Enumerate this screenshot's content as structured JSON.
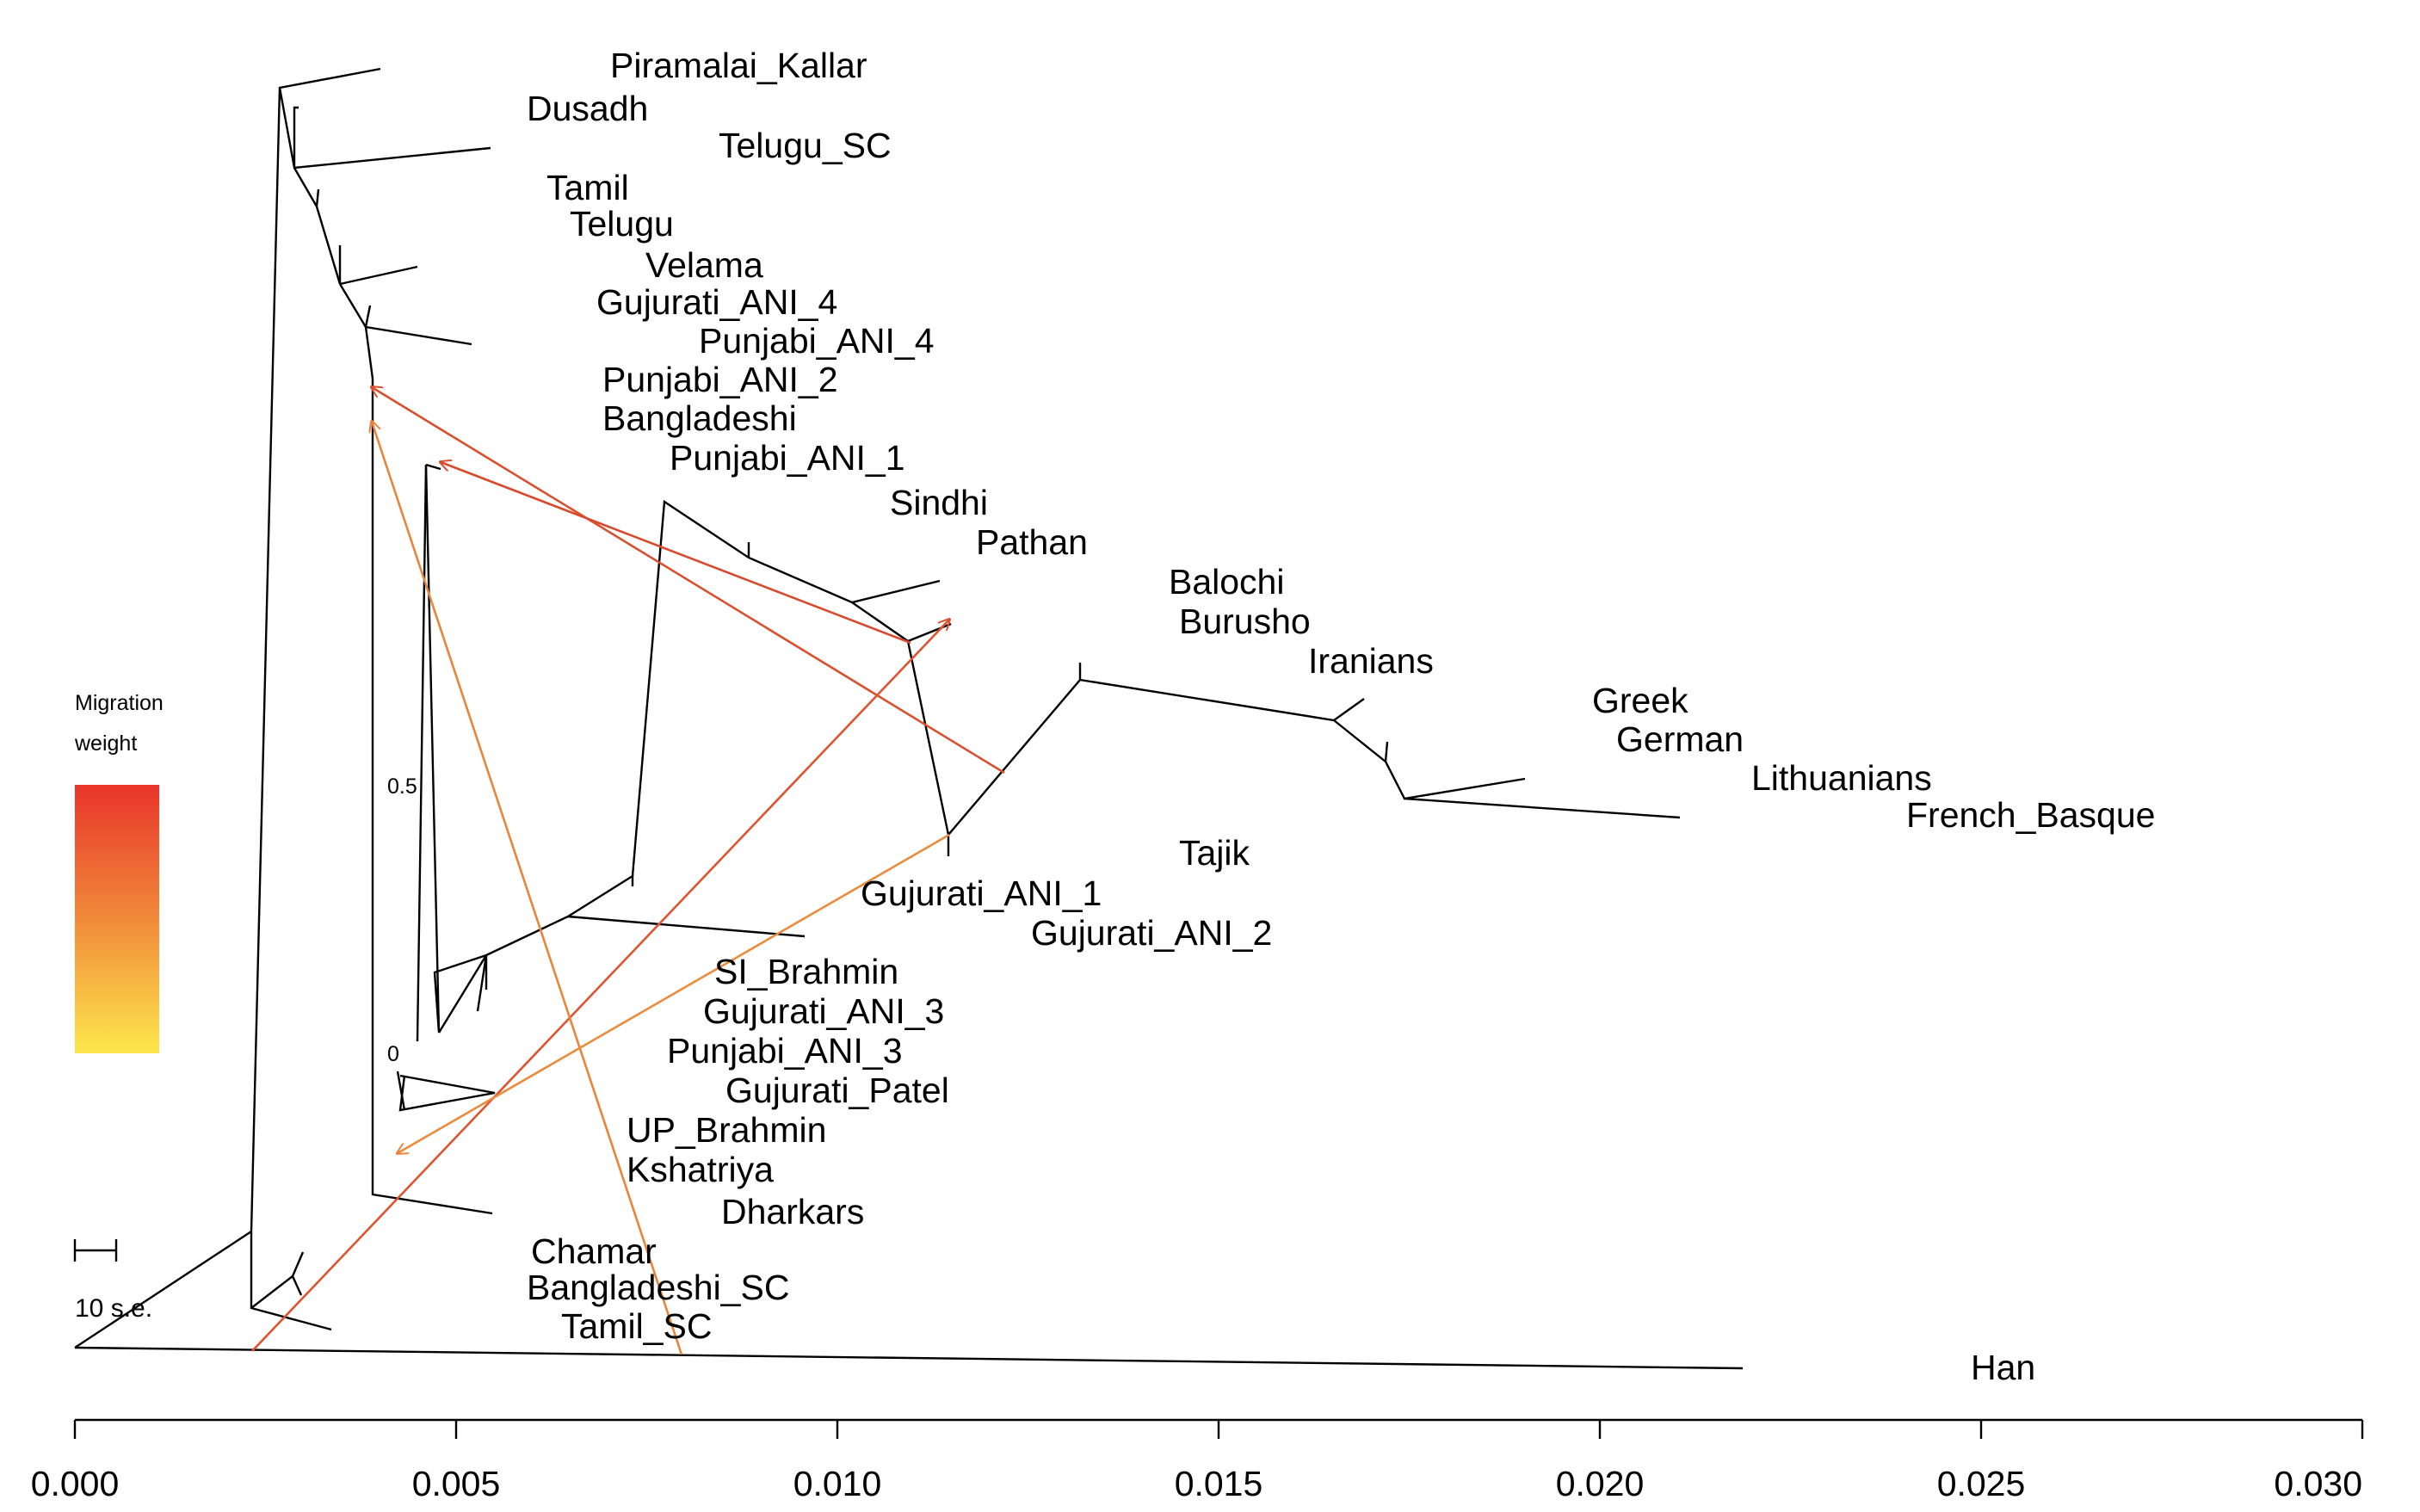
{
  "populations": [
    "Piramalai_Kallar",
    "Dusadh",
    "Telugu_SC",
    "Tamil",
    "Telugu",
    "Velama",
    "Gujurati_ANI_4",
    "Punjabi_ANI_4",
    "Punjabi_ANI_2",
    "Bangladeshi",
    "Punjabi_ANI_1",
    "Sindhi",
    "Pathan",
    "Balochi",
    "Burusho",
    "Iranians",
    "Greek",
    "German",
    "Lithuanians",
    "French_Basque",
    "Tajik",
    "Gujurati_ANI_1",
    "Gujurati_ANI_2",
    "SI_Brahmin",
    "Gujurati_ANI_3",
    "Punjabi_ANI_3",
    "Gujurati_Patel",
    "UP_Brahmin",
    "Kshatriya",
    "Dharkars",
    "Chamar",
    "Bangladeshi_SC",
    "Tamil_SC",
    "Han"
  ],
  "x_axis": {
    "ticks": [
      "0.000",
      "0.005",
      "0.010",
      "0.015",
      "0.020",
      "0.025",
      "0.030"
    ]
  },
  "legend": {
    "title_line1": "Migration",
    "title_line2": "weight",
    "max_label": "0.5",
    "min_label": "0",
    "colors": {
      "high": "#e8342a",
      "low": "#fde74c"
    }
  },
  "scale_bar": {
    "label": "10 s.e."
  }
}
